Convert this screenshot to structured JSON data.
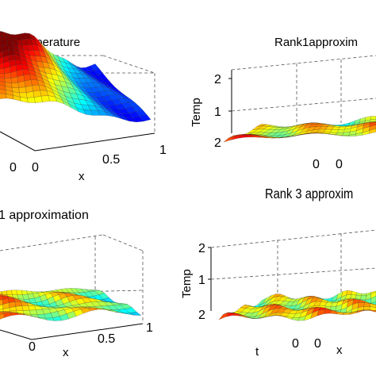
{
  "chart_data": [
    {
      "type": "surface",
      "title": "ual temperature",
      "xlabel": "x",
      "zlabel": "",
      "x_ticks": [
        "0.5",
        "1"
      ],
      "z_ticks": [],
      "extra_ticks": [
        "0",
        "0"
      ],
      "surface": "high plateau sloping down toward x = 1",
      "colormap": "jet"
    },
    {
      "type": "surface",
      "title": "Rank1approxim",
      "xlabel": "",
      "zlabel": "Temp",
      "z_ticks": [
        "2",
        "1",
        "2"
      ],
      "x_ticks": [
        "0",
        "0"
      ],
      "surface": "flat low surface",
      "colormap": "jet"
    },
    {
      "type": "surface",
      "title": "1 approximation",
      "xlabel": "x",
      "zlabel": "",
      "x_ticks": [
        "0",
        "0.5",
        "1"
      ],
      "z_ticks": [],
      "surface": "flat low surface",
      "colormap": "jet"
    },
    {
      "type": "surface",
      "title": "Rank 3 approxim",
      "xlabel": "x",
      "ylabel": "t",
      "zlabel": "Temp",
      "z_ticks": [
        "2",
        "1",
        "2"
      ],
      "x_ticks": [
        "0",
        "0"
      ],
      "surface": "flat low surface",
      "colormap": "jet"
    }
  ]
}
